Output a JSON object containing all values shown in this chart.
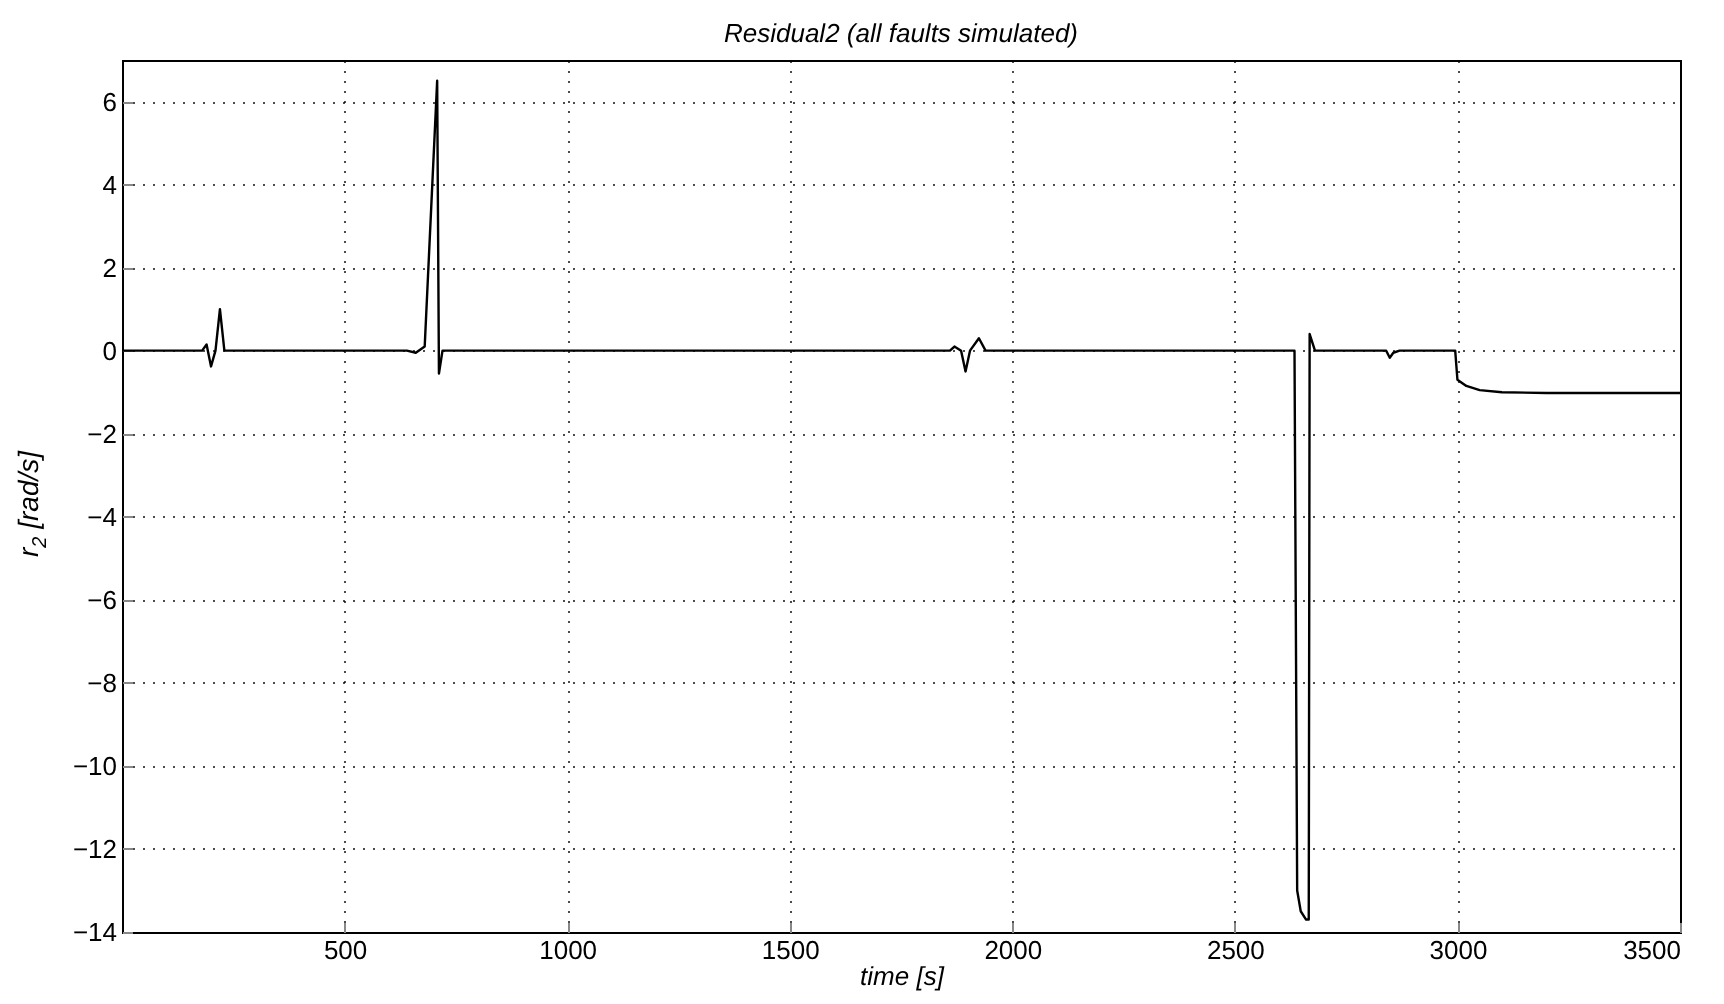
{
  "chart_data": {
    "type": "line",
    "title": "Residual2 (all faults simulated)",
    "xlabel": "time [s]",
    "ylabel": "r$_{2}$ [rad/s]",
    "x": [
      0,
      180,
      190,
      200,
      210,
      220,
      230,
      640,
      660,
      680,
      708,
      712,
      720,
      1860,
      1870,
      1885,
      1895,
      1905,
      1925,
      1940,
      2634,
      2640,
      2648,
      2660,
      2666,
      2668,
      2680,
      2840,
      2848,
      2856,
      2870,
      2995,
      3000,
      3020,
      3050,
      3100,
      3200,
      3500
    ],
    "series": [
      {
        "color": "#000000",
        "values": [
          0,
          0,
          0.15,
          -0.38,
          0,
          1.0,
          0,
          0,
          -0.05,
          0.1,
          6.5,
          -0.55,
          0,
          0,
          0.1,
          0,
          -0.5,
          0,
          0.3,
          0,
          0,
          -13.0,
          -13.5,
          -13.7,
          -13.7,
          0.4,
          0,
          0,
          -0.17,
          -0.05,
          0,
          0,
          -0.7,
          -0.85,
          -0.95,
          -1.0,
          -1.02,
          -1.02
        ]
      }
    ],
    "xlim": [
      0,
      3500
    ],
    "xticks": [
      500,
      1000,
      1500,
      2000,
      2500,
      3000,
      3500
    ],
    "ylim": [
      -14,
      7
    ],
    "yticks": [
      -14,
      -12,
      -10,
      -8,
      -6,
      -4,
      -2,
      0,
      2,
      4,
      6
    ],
    "grid": true
  }
}
